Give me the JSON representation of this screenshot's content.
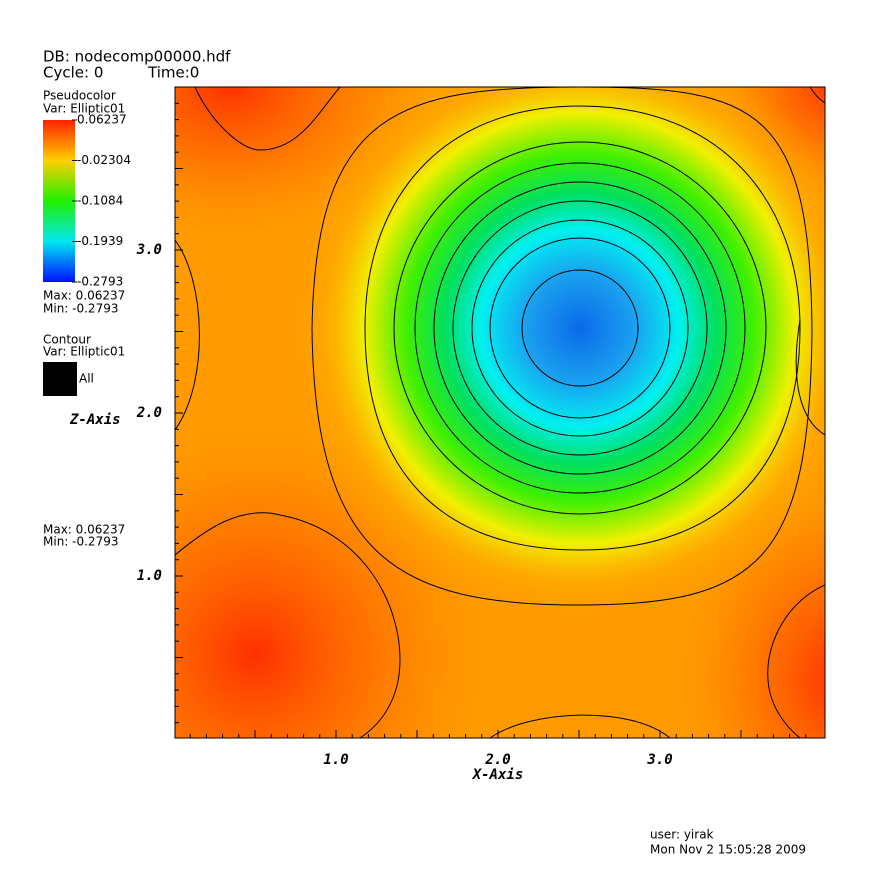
{
  "header": {
    "db": "DB: nodecomp00000.hdf",
    "cycle": "Cycle: 0",
    "time": "Time:0"
  },
  "legend": {
    "pseudocolor": {
      "title": "Pseudocolor",
      "var": "Var: Elliptic01",
      "ticks": [
        "0.06237",
        "-0.02304",
        "-0.1084",
        "-0.1939",
        "-0.2793"
      ],
      "max": "Max:  0.06237",
      "min": "Min: -0.2793"
    },
    "contour": {
      "title": "Contour",
      "var": "Var: Elliptic01",
      "entry": "All",
      "max": "Max:  0.06237",
      "min": "Min: -0.2793"
    }
  },
  "axes": {
    "x_label": "X-Axis",
    "z_label": "Z-Axis",
    "x_ticks": [
      "1.0",
      "2.0",
      "3.0"
    ],
    "z_ticks": [
      "1.0",
      "2.0",
      "3.0"
    ]
  },
  "footer": {
    "user": "user: yirak",
    "date": "Mon Nov  2 15:05:28 2009"
  }
}
